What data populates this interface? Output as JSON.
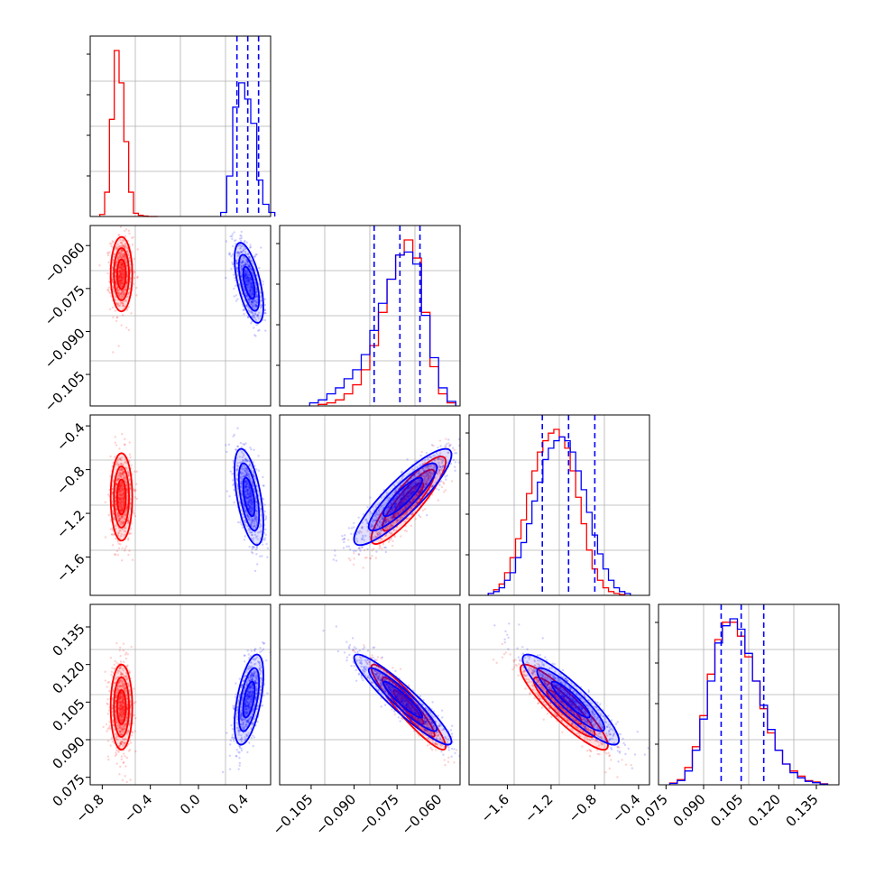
{
  "figure": {
    "type": "corner plot"
  },
  "colors": {
    "series_a": "#ff0000",
    "series_b": "#0000ff",
    "grid": "#b0b0b0",
    "frame": "#000000"
  },
  "chart_data": [
    {
      "type": "histogram",
      "panel": "0-0",
      "x_range": [
        -0.9,
        0.6
      ],
      "series": [
        {
          "color": "#ff0000",
          "bins_x": [
            -0.8,
            -0.76,
            -0.72,
            -0.68,
            -0.64,
            -0.6,
            -0.56,
            -0.52,
            -0.48,
            -0.44,
            -0.4,
            -0.36
          ],
          "counts": [
            5,
            60,
            240,
            410,
            330,
            185,
            60,
            8,
            3,
            1,
            0,
            0
          ]
        },
        {
          "color": "#0000ff",
          "bins_x": [
            0.21,
            0.26,
            0.31,
            0.36,
            0.41,
            0.46,
            0.51,
            0.56,
            0.61
          ],
          "counts": [
            10,
            100,
            270,
            330,
            290,
            230,
            90,
            30,
            10
          ]
        }
      ],
      "quantile_lines": [
        0.32,
        0.41,
        0.5
      ]
    },
    {
      "type": "histogram",
      "panel": "1-1",
      "x_range": [
        -0.116,
        -0.053
      ],
      "xticks": [
        "−0.105",
        "−0.090",
        "−0.075",
        "−0.060"
      ],
      "series": [
        {
          "color": "#ff0000",
          "bins_x": [
            -0.101,
            -0.098,
            -0.095,
            -0.092,
            -0.089,
            -0.086,
            -0.083,
            -0.08,
            -0.077,
            -0.074,
            -0.071,
            -0.068,
            -0.065,
            -0.062,
            -0.059,
            -0.056
          ],
          "counts": [
            5,
            10,
            20,
            40,
            70,
            120,
            200,
            310,
            420,
            500,
            550,
            490,
            310,
            130,
            40,
            10
          ]
        },
        {
          "color": "#0000ff",
          "bins_x": [
            -0.104,
            -0.101,
            -0.098,
            -0.095,
            -0.092,
            -0.089,
            -0.086,
            -0.083,
            -0.08,
            -0.077,
            -0.074,
            -0.071,
            -0.068,
            -0.065,
            -0.062,
            -0.059,
            -0.056
          ],
          "counts": [
            10,
            20,
            40,
            60,
            90,
            120,
            170,
            250,
            340,
            420,
            500,
            510,
            470,
            300,
            160,
            60,
            15
          ]
        }
      ],
      "quantile_lines": [
        -0.083,
        -0.074,
        -0.067
      ]
    },
    {
      "type": "histogram",
      "panel": "2-2",
      "x_range": [
        -1.95,
        -0.3
      ],
      "xticks": [
        "−1.6",
        "−1.2",
        "−0.8",
        "−0.4"
      ],
      "series": [
        {
          "color": "#ff0000",
          "bins_x": [
            -1.75,
            -1.7,
            -1.65,
            -1.6,
            -1.55,
            -1.5,
            -1.45,
            -1.4,
            -1.35,
            -1.3,
            -1.25,
            -1.2,
            -1.15,
            -1.1,
            -1.05,
            -1.0,
            -0.95,
            -0.9,
            -0.85,
            -0.8,
            -0.75,
            -0.7,
            -0.65,
            -0.6,
            -0.55
          ],
          "counts": [
            5,
            15,
            30,
            60,
            100,
            150,
            200,
            270,
            330,
            380,
            410,
            430,
            440,
            420,
            390,
            330,
            260,
            190,
            120,
            70,
            40,
            20,
            10,
            5,
            2
          ]
        },
        {
          "color": "#0000ff",
          "bins_x": [
            -1.75,
            -1.7,
            -1.65,
            -1.6,
            -1.55,
            -1.5,
            -1.45,
            -1.4,
            -1.35,
            -1.3,
            -1.25,
            -1.2,
            -1.15,
            -1.1,
            -1.05,
            -1.0,
            -0.95,
            -0.9,
            -0.85,
            -0.8,
            -0.75,
            -0.7,
            -0.65,
            -0.6,
            -0.55,
            -0.5
          ],
          "counts": [
            5,
            10,
            20,
            40,
            60,
            100,
            140,
            190,
            250,
            300,
            360,
            390,
            410,
            420,
            410,
            380,
            330,
            280,
            220,
            160,
            110,
            70,
            40,
            20,
            10,
            5
          ]
        }
      ],
      "quantile_lines": [
        -1.28,
        -1.04,
        -0.8
      ]
    },
    {
      "type": "histogram",
      "panel": "3-3",
      "x_range": [
        0.072,
        0.144
      ],
      "xticks": [
        "0.075",
        "0.090",
        "0.105",
        "0.120",
        "0.135"
      ],
      "series": [
        {
          "color": "#ff0000",
          "bins_x": [
            0.078,
            0.081,
            0.084,
            0.087,
            0.09,
            0.093,
            0.096,
            0.099,
            0.102,
            0.105,
            0.108,
            0.111,
            0.114,
            0.117,
            0.12,
            0.123,
            0.126,
            0.129,
            0.132,
            0.135,
            0.138
          ],
          "counts": [
            5,
            15,
            50,
            110,
            200,
            320,
            420,
            470,
            470,
            430,
            370,
            300,
            220,
            150,
            100,
            60,
            40,
            25,
            12,
            8,
            3
          ]
        },
        {
          "color": "#0000ff",
          "bins_x": [
            0.078,
            0.081,
            0.084,
            0.087,
            0.09,
            0.093,
            0.096,
            0.099,
            0.102,
            0.105,
            0.108,
            0.111,
            0.114,
            0.117,
            0.12,
            0.123,
            0.126,
            0.129,
            0.132,
            0.135,
            0.138
          ],
          "counts": [
            4,
            12,
            40,
            100,
            190,
            300,
            410,
            460,
            480,
            450,
            380,
            300,
            230,
            160,
            100,
            60,
            35,
            20,
            10,
            6,
            2
          ]
        }
      ],
      "quantile_lines": [
        0.097,
        0.105,
        0.114
      ]
    },
    {
      "type": "scatter-contour",
      "panel": "1-0",
      "x_range": [
        -0.9,
        0.6
      ],
      "y_range": [
        -0.116,
        -0.053
      ],
      "yticks": [
        "−0.060",
        "−0.075",
        "−0.090",
        "−0.105"
      ],
      "series": [
        {
          "color": "#ff0000",
          "center": [
            -0.64,
            -0.07
          ],
          "spread": [
            0.045,
            0.0065
          ],
          "corr": 0.0
        },
        {
          "color": "#0000ff",
          "center": [
            0.42,
            -0.073
          ],
          "spread": [
            0.06,
            0.007
          ],
          "corr": -0.6
        }
      ]
    },
    {
      "type": "scatter-contour",
      "panel": "2-0",
      "x_range": [
        -0.9,
        0.6
      ],
      "y_range": [
        -1.95,
        -0.3
      ],
      "yticks": [
        "−0.4",
        "−0.8",
        "−1.2",
        "−1.6"
      ],
      "series": [
        {
          "color": "#ff0000",
          "center": [
            -0.64,
            -1.05
          ],
          "spread": [
            0.045,
            0.2
          ],
          "corr": 0.0
        },
        {
          "color": "#0000ff",
          "center": [
            0.42,
            -1.05
          ],
          "spread": [
            0.06,
            0.22
          ],
          "corr": -0.55
        }
      ]
    },
    {
      "type": "scatter-contour",
      "panel": "3-0",
      "x_range": [
        -0.9,
        0.6
      ],
      "y_range": [
        0.072,
        0.144
      ],
      "yticks": [
        "0.135",
        "0.120",
        "0.105",
        "0.090",
        "0.075"
      ],
      "xticks": [
        "−0.8",
        "−0.4",
        "0.0",
        "0.4"
      ],
      "series": [
        {
          "color": "#ff0000",
          "center": [
            -0.64,
            0.103
          ],
          "spread": [
            0.045,
            0.0085
          ],
          "corr": 0.0
        },
        {
          "color": "#0000ff",
          "center": [
            0.42,
            0.106
          ],
          "spread": [
            0.06,
            0.009
          ],
          "corr": 0.55
        }
      ]
    },
    {
      "type": "scatter-contour",
      "panel": "2-1",
      "x_range": [
        -0.116,
        -0.053
      ],
      "y_range": [
        -1.95,
        -0.3
      ],
      "series": [
        {
          "color": "#ff0000",
          "center": [
            -0.071,
            -1.08
          ],
          "spread": [
            0.0065,
            0.2
          ],
          "corr": 0.88
        },
        {
          "color": "#0000ff",
          "center": [
            -0.073,
            -1.05
          ],
          "spread": [
            0.0085,
            0.22
          ],
          "corr": 0.88
        }
      ]
    },
    {
      "type": "scatter-contour",
      "panel": "3-1",
      "x_range": [
        -0.116,
        -0.053
      ],
      "y_range": [
        0.072,
        0.144
      ],
      "series": [
        {
          "color": "#ff0000",
          "center": [
            -0.071,
            0.103
          ],
          "spread": [
            0.0065,
            0.0085
          ],
          "corr": -0.93
        },
        {
          "color": "#0000ff",
          "center": [
            -0.073,
            0.106
          ],
          "spread": [
            0.0085,
            0.009
          ],
          "corr": -0.93
        }
      ]
    },
    {
      "type": "scatter-contour",
      "panel": "3-2",
      "x_range": [
        -1.95,
        -0.3
      ],
      "y_range": [
        0.072,
        0.144
      ],
      "series": [
        {
          "color": "#ff0000",
          "center": [
            -1.08,
            0.103
          ],
          "spread": [
            0.2,
            0.0085
          ],
          "corr": -0.9
        },
        {
          "color": "#0000ff",
          "center": [
            -1.02,
            0.106
          ],
          "spread": [
            0.22,
            0.009
          ],
          "corr": -0.9
        }
      ]
    }
  ]
}
